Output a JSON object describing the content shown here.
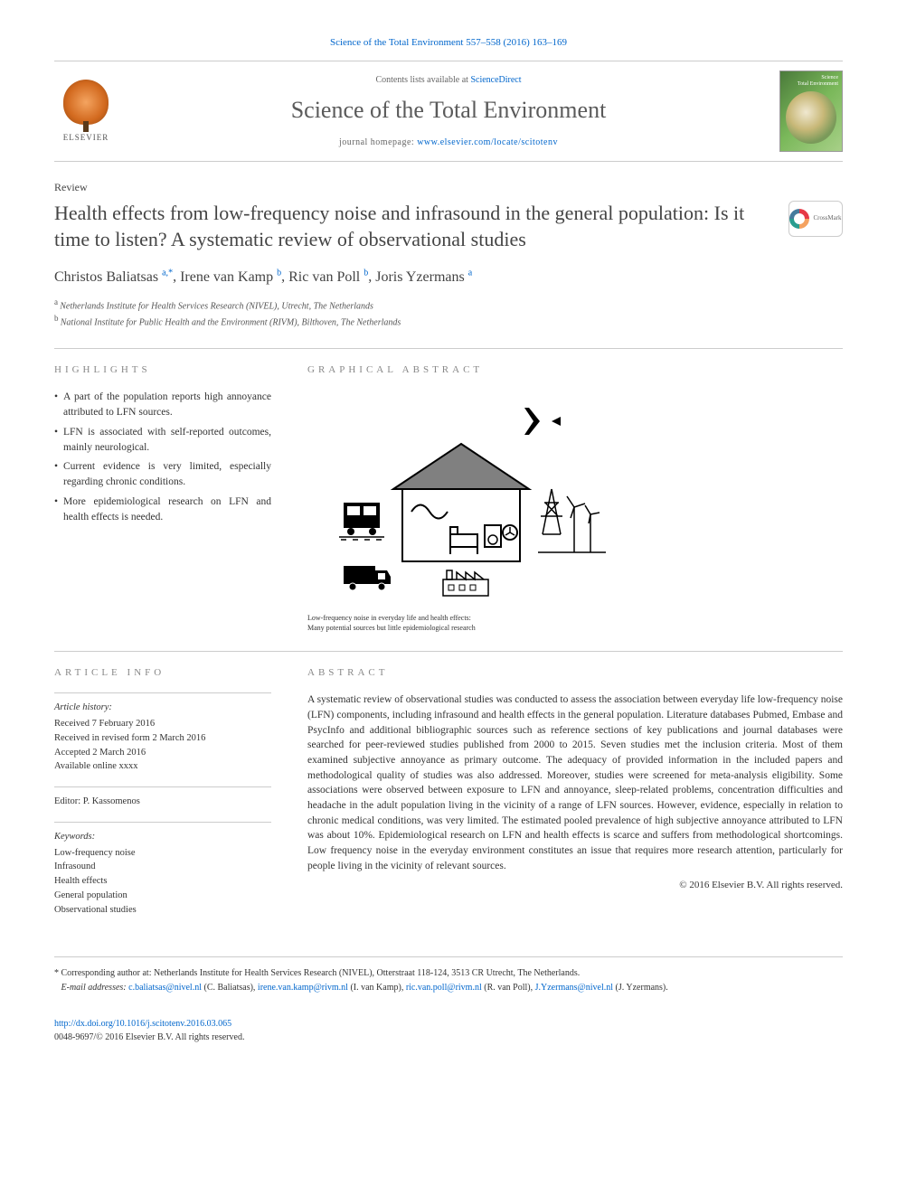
{
  "topRef": {
    "text": "Science of the Total Environment 557–558 (2016) 163–169",
    "color": "#0066cc"
  },
  "header": {
    "publisherName": "ELSEVIER",
    "contentsPrefix": "Contents lists available at ",
    "contentsLink": "ScienceDirect",
    "journalTitle": "Science of the Total Environment",
    "homepagePrefix": "journal homepage: ",
    "homepageLink": "www.elsevier.com/locate/scitotenv",
    "coverTitleLine1": "Science",
    "coverTitleLine2": "Total Environment"
  },
  "articleType": "Review",
  "articleTitle": "Health effects from low-frequency noise and infrasound in the general population: Is it time to listen? A systematic review of observational studies",
  "crossmarkLabel": "CrossMark",
  "authors": [
    {
      "name": "Christos Baliatsas",
      "affil": "a",
      "corresponding": true
    },
    {
      "name": "Irene van Kamp",
      "affil": "b",
      "corresponding": false
    },
    {
      "name": "Ric van Poll",
      "affil": "b",
      "corresponding": false
    },
    {
      "name": "Joris Yzermans",
      "affil": "a",
      "corresponding": false
    }
  ],
  "affiliations": [
    {
      "key": "a",
      "text": "Netherlands Institute for Health Services Research (NIVEL), Utrecht, The Netherlands"
    },
    {
      "key": "b",
      "text": "National Institute for Public Health and the Environment (RIVM), Bilthoven, The Netherlands"
    }
  ],
  "highlights": {
    "label": "HIGHLIGHTS",
    "items": [
      "A part of the population reports high annoyance attributed to LFN sources.",
      "LFN is associated with self-reported outcomes, mainly neurological.",
      "Current evidence is very limited, especially regarding chronic conditions.",
      "More epidemiological research on LFN and health effects is needed."
    ]
  },
  "graphical": {
    "label": "GRAPHICAL ABSTRACT",
    "captionLine1": "Low-frequency noise in everyday life and health effects:",
    "captionLine2": "Many potential sources but little epidemiological research",
    "iconColor": "#000000",
    "houseFill": "#808080",
    "houseStroke": "#000000",
    "backgroundColor": "#ffffff"
  },
  "articleInfo": {
    "label": "ARTICLE INFO",
    "historyHeading": "Article history:",
    "history": [
      "Received 7 February 2016",
      "Received in revised form 2 March 2016",
      "Accepted 2 March 2016",
      "Available online xxxx"
    ],
    "editorLabel": "Editor:",
    "editor": "P. Kassomenos",
    "keywordsHeading": "Keywords:",
    "keywords": [
      "Low-frequency noise",
      "Infrasound",
      "Health effects",
      "General population",
      "Observational studies"
    ]
  },
  "abstract": {
    "label": "ABSTRACT",
    "text": "A systematic review of observational studies was conducted to assess the association between everyday life low-frequency noise (LFN) components, including infrasound and health effects in the general population. Literature databases Pubmed, Embase and PsycInfo and additional bibliographic sources such as reference sections of key publications and journal databases were searched for peer-reviewed studies published from 2000 to 2015. Seven studies met the inclusion criteria. Most of them examined subjective annoyance as primary outcome. The adequacy of provided information in the included papers and methodological quality of studies was also addressed. Moreover, studies were screened for meta-analysis eligibility. Some associations were observed between exposure to LFN and annoyance, sleep-related problems, concentration difficulties and headache in the adult population living in the vicinity of a range of LFN sources. However, evidence, especially in relation to chronic medical conditions, was very limited. The estimated pooled prevalence of high subjective annoyance attributed to LFN was about 10%. Epidemiological research on LFN and health effects is scarce and suffers from methodological shortcomings. Low frequency noise in the everyday environment constitutes an issue that requires more research attention, particularly for people living in the vicinity of relevant sources.",
    "copyright": "© 2016 Elsevier B.V. All rights reserved."
  },
  "correspondence": {
    "label": "Corresponding author at:",
    "address": "Netherlands Institute for Health Services Research (NIVEL), Otterstraat 118-124, 3513 CR Utrecht, The Netherlands.",
    "emailLabel": "E-mail addresses:",
    "emails": [
      {
        "email": "c.baliatsas@nivel.nl",
        "name": "(C. Baliatsas)"
      },
      {
        "email": "irene.van.kamp@rivm.nl",
        "name": "(I. van Kamp)"
      },
      {
        "email": "ric.van.poll@rivm.nl",
        "name": "(R. van Poll)"
      },
      {
        "email": "J.Yzermans@nivel.nl",
        "name": "(J. Yzermans)"
      }
    ]
  },
  "doi": {
    "url": "http://dx.doi.org/10.1016/j.scitotenv.2016.03.065",
    "issn": "0048-9697/© 2016 Elsevier B.V. All rights reserved."
  },
  "styling": {
    "pageWidth": 992,
    "pageHeight": 1323,
    "linkColor": "#0066cc",
    "textColor": "#333333",
    "ruleColor": "#cccccc",
    "sectionLabelColor": "#888888",
    "bodyFont": "Georgia, Times New Roman, serif",
    "titleFontSize": 22,
    "journalTitleFontSize": 26,
    "authorFontSize": 16,
    "bodyFontSize": 11.5,
    "smallFontSize": 10,
    "sectionLabelLetterSpacing": 4
  }
}
